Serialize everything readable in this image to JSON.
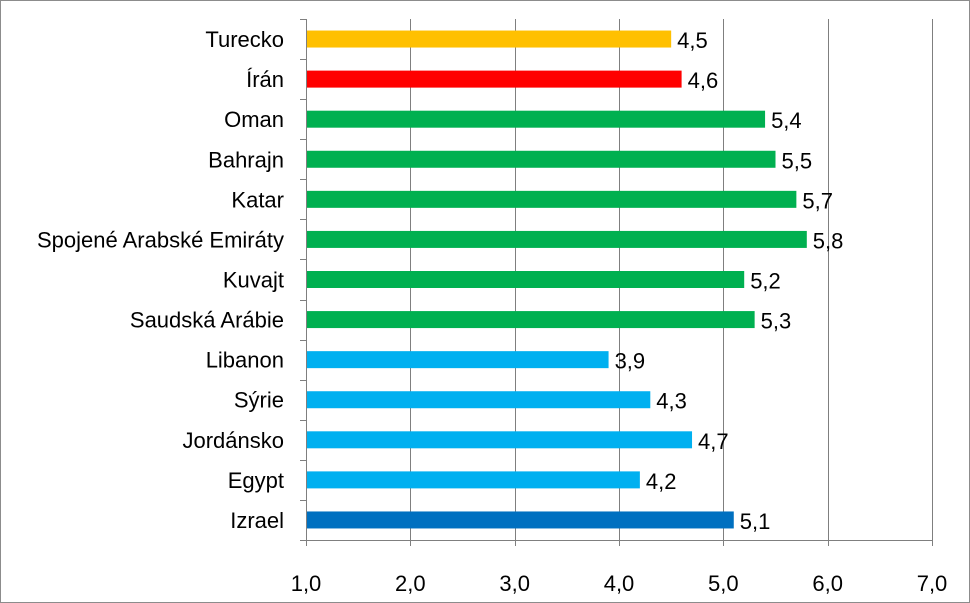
{
  "chart_data": {
    "type": "bar",
    "orientation": "horizontal",
    "categories": [
      "Turecko",
      "Írán",
      "Oman",
      "Bahrajn",
      "Katar",
      "Spojené Arabské Emiráty",
      "Kuvajt",
      "Saudská Arábie",
      "Libanon",
      "Sýrie",
      "Jordánsko",
      "Egypt",
      "Izrael"
    ],
    "values": [
      4.5,
      4.6,
      5.4,
      5.5,
      5.7,
      5.8,
      5.2,
      5.3,
      3.9,
      4.3,
      4.7,
      4.2,
      5.1
    ],
    "value_labels": [
      "4,5",
      "4,6",
      "5,4",
      "5,5",
      "5,7",
      "5,8",
      "5,2",
      "5,3",
      "3,9",
      "4,3",
      "4,7",
      "4,2",
      "5,1"
    ],
    "bar_colors": [
      "#ffc000",
      "#ff0000",
      "#00b050",
      "#00b050",
      "#00b050",
      "#00b050",
      "#00b050",
      "#00b050",
      "#00b0f0",
      "#00b0f0",
      "#00b0f0",
      "#00b0f0",
      "#0070c0"
    ],
    "xlim": [
      1.0,
      7.0
    ],
    "x_ticks": [
      1.0,
      2.0,
      3.0,
      4.0,
      5.0,
      6.0,
      7.0
    ],
    "x_tick_labels": [
      "1,0",
      "2,0",
      "3,0",
      "4,0",
      "5,0",
      "6,0",
      "7,0"
    ],
    "grid": "vertical",
    "legend": "none"
  }
}
